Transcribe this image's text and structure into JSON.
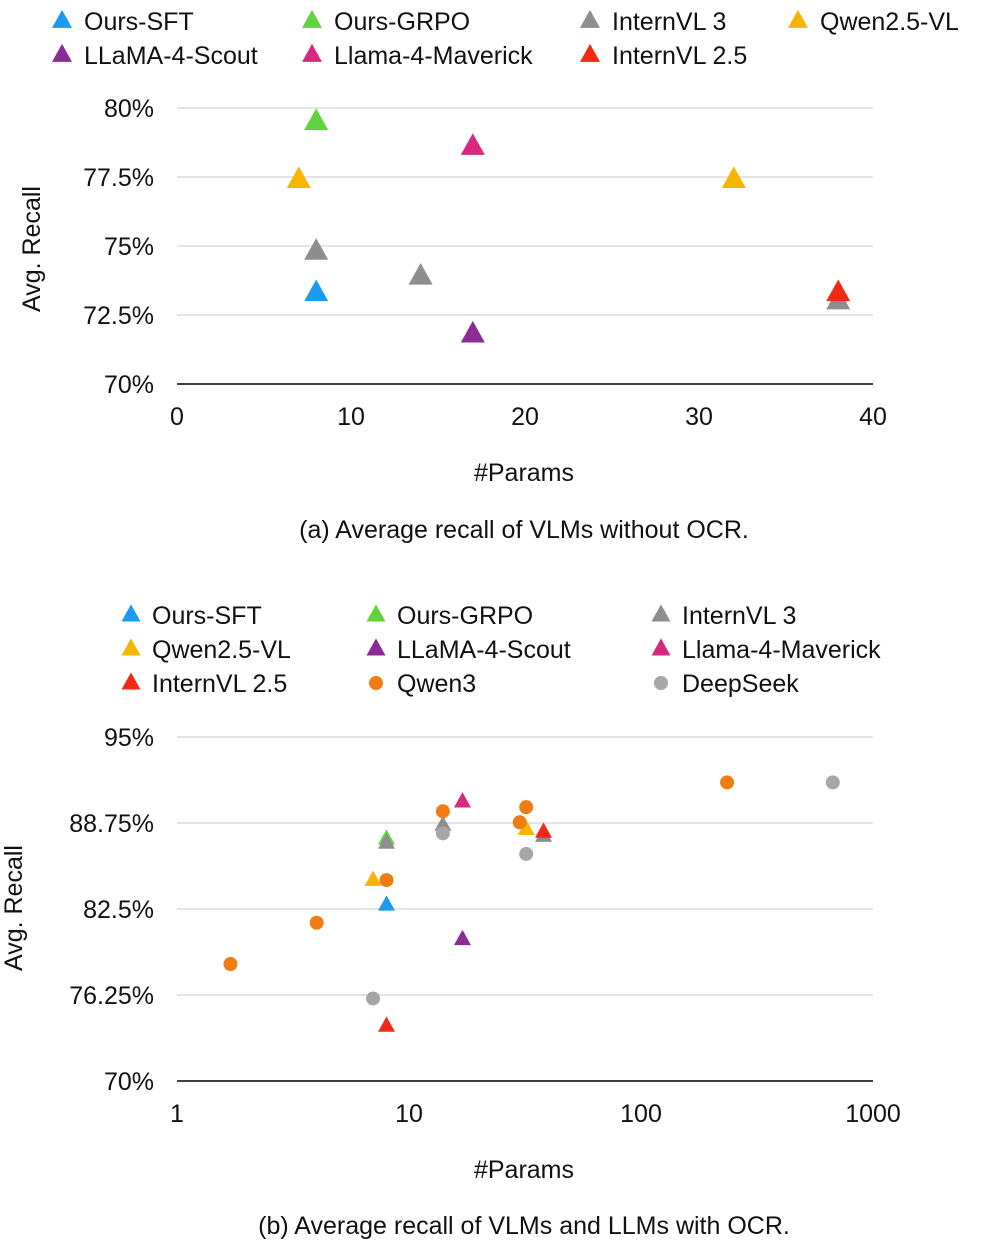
{
  "chart_data": [
    {
      "type": "scatter",
      "caption": "(a) Average recall of VLMs without OCR.",
      "xlabel": "#Params",
      "ylabel": "Avg. Recall",
      "x_scale": "linear",
      "xlim": [
        0,
        40
      ],
      "ylim": [
        70,
        80
      ],
      "x_ticks": [
        0,
        10,
        20,
        30,
        40
      ],
      "x_tick_labels": [
        "0",
        "10",
        "20",
        "30",
        "40"
      ],
      "y_ticks": [
        70,
        72.5,
        75,
        77.5,
        80
      ],
      "y_tick_labels": [
        "70%",
        "72.5%",
        "75%",
        "77.5%",
        "80%"
      ],
      "legend_position": "top",
      "series": [
        {
          "name": "Ours-SFT",
          "marker": "triangle",
          "color": "#1a9af0",
          "points": [
            [
              8,
              73.3
            ]
          ]
        },
        {
          "name": "Ours-GRPO",
          "marker": "triangle",
          "color": "#5fd33c",
          "points": [
            [
              8,
              79.5
            ]
          ]
        },
        {
          "name": "InternVL 3",
          "marker": "triangle",
          "color": "#8e8e8e",
          "points": [
            [
              8,
              74.8
            ],
            [
              14,
              73.9
            ],
            [
              38,
              73.0
            ]
          ]
        },
        {
          "name": "Qwen2.5-VL",
          "marker": "triangle",
          "color": "#f7b500",
          "points": [
            [
              7,
              77.4
            ],
            [
              32,
              77.4
            ]
          ]
        },
        {
          "name": "LLaMA-4-Scout",
          "marker": "triangle",
          "color": "#8a2b97",
          "points": [
            [
              17,
              71.8
            ]
          ]
        },
        {
          "name": "Llama-4-Maverick",
          "marker": "triangle",
          "color": "#d6297f",
          "points": [
            [
              17,
              78.6
            ]
          ]
        },
        {
          "name": "InternVL 2.5",
          "marker": "triangle",
          "color": "#f22a14",
          "points": [
            [
              38,
              73.3
            ]
          ]
        }
      ]
    },
    {
      "type": "scatter",
      "caption": "(b) Average recall of VLMs and LLMs with OCR.",
      "xlabel": "#Params",
      "ylabel": "Avg. Recall",
      "x_scale": "log",
      "xlim": [
        1,
        1000
      ],
      "ylim": [
        70,
        95
      ],
      "x_ticks": [
        1,
        10,
        100,
        1000
      ],
      "x_tick_labels": [
        "1",
        "10",
        "100",
        "1000"
      ],
      "y_ticks": [
        70,
        76.25,
        82.5,
        88.75,
        95
      ],
      "y_tick_labels": [
        "70%",
        "76.25%",
        "82.5%",
        "88.75%",
        "95%"
      ],
      "legend_position": "top",
      "series": [
        {
          "name": "Ours-SFT",
          "marker": "triangle",
          "color": "#1a9af0",
          "points": [
            [
              8,
              82.8
            ]
          ]
        },
        {
          "name": "Ours-GRPO",
          "marker": "triangle",
          "color": "#5fd33c",
          "points": [
            [
              8,
              87.6
            ]
          ]
        },
        {
          "name": "InternVL 3",
          "marker": "triangle",
          "color": "#8e8e8e",
          "points": [
            [
              8,
              87.3
            ],
            [
              14,
              88.6
            ],
            [
              38,
              87.8
            ]
          ]
        },
        {
          "name": "Qwen2.5-VL",
          "marker": "triangle",
          "color": "#f7b500",
          "points": [
            [
              7,
              84.6
            ],
            [
              32,
              88.3
            ]
          ]
        },
        {
          "name": "LLaMA-4-Scout",
          "marker": "triangle",
          "color": "#8a2b97",
          "points": [
            [
              17,
              80.3
            ]
          ]
        },
        {
          "name": "Llama-4-Maverick",
          "marker": "triangle",
          "color": "#d6297f",
          "points": [
            [
              17,
              90.3
            ]
          ]
        },
        {
          "name": "InternVL 2.5",
          "marker": "triangle",
          "color": "#f22a14",
          "points": [
            [
              8,
              74.0
            ],
            [
              38,
              88.1
            ]
          ]
        },
        {
          "name": "Qwen3",
          "marker": "circle",
          "color": "#f07c14",
          "points": [
            [
              1.7,
              78.5
            ],
            [
              4,
              81.5
            ],
            [
              8,
              84.6
            ],
            [
              14,
              89.6
            ],
            [
              30,
              88.8
            ],
            [
              32,
              89.9
            ],
            [
              235,
              91.7
            ]
          ]
        },
        {
          "name": "DeepSeek",
          "marker": "circle",
          "color": "#a6a6a6",
          "points": [
            [
              7,
              76.0
            ],
            [
              14,
              88.0
            ],
            [
              32,
              86.5
            ],
            [
              671,
              91.7
            ]
          ]
        }
      ]
    }
  ]
}
